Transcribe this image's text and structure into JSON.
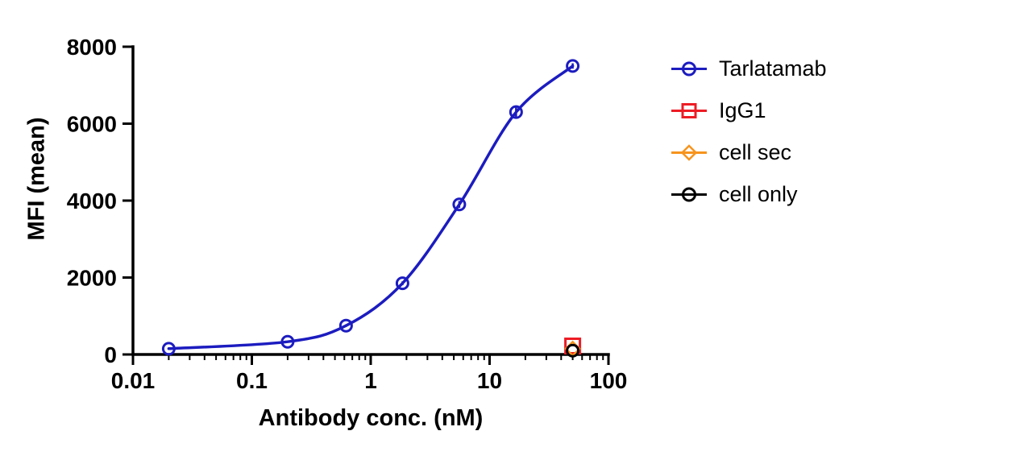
{
  "chart_data": {
    "type": "line",
    "title": "",
    "xlabel": "Antibody conc. (nM)",
    "ylabel": "MFI (mean)",
    "x_scale": "log",
    "xlim": [
      0.01,
      100
    ],
    "ylim": [
      0,
      8000
    ],
    "x_ticks": [
      0.01,
      0.1,
      1,
      10,
      100
    ],
    "x_tick_labels": [
      "0.01",
      "0.1",
      "1",
      "10",
      "100"
    ],
    "y_ticks": [
      0,
      2000,
      4000,
      6000,
      8000
    ],
    "y_tick_labels": [
      "0",
      "2000",
      "4000",
      "6000",
      "8000"
    ],
    "grid": false,
    "legend_position": "right",
    "axis_color": "#000000",
    "series": [
      {
        "name": "Tarlatamab",
        "color": "#1C1CC0",
        "marker": "circle",
        "line": "smooth",
        "x": [
          0.02,
          0.2,
          0.62,
          1.85,
          5.56,
          16.7,
          50
        ],
        "y": [
          150,
          330,
          750,
          1850,
          3900,
          6300,
          7500
        ],
        "sem": [
          20,
          20,
          30,
          50,
          90,
          160,
          70
        ]
      },
      {
        "name": "IgG1",
        "color": "#ED1C24",
        "marker": "square",
        "line": "none",
        "x": [
          50
        ],
        "y": [
          220
        ],
        "sem": [
          0
        ]
      },
      {
        "name": "cell sec",
        "color": "#F7941D",
        "marker": "diamond",
        "line": "none",
        "x": [
          50
        ],
        "y": [
          150
        ],
        "sem": [
          0
        ]
      },
      {
        "name": "cell only",
        "color": "#000000",
        "marker": "circle",
        "line": "none",
        "x": [
          50
        ],
        "y": [
          100
        ],
        "sem": [
          0
        ]
      }
    ]
  }
}
